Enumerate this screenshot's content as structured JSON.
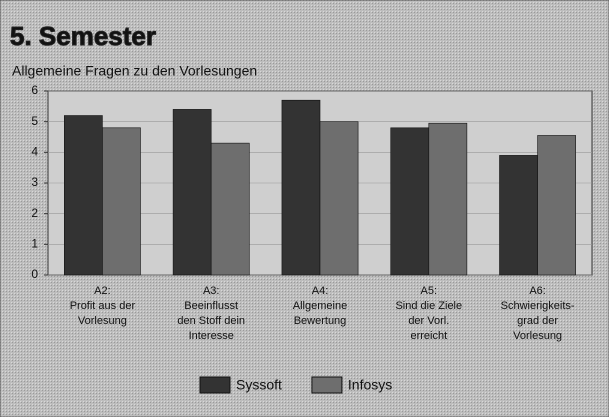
{
  "chart_data": {
    "type": "bar",
    "title": "5. Semester",
    "subtitle": "Allgemeine Fragen zu den Vorlesungen",
    "categories": [
      [
        "A2:",
        "Profit aus der",
        "Vorlesung"
      ],
      [
        "A3:",
        "Beeinflusst",
        "den Stoff dein",
        "Interesse"
      ],
      [
        "A4:",
        "Allgemeine",
        "Bewertung"
      ],
      [
        "A5:",
        "Sind die Ziele",
        "der Vorl.",
        "erreicht"
      ],
      [
        "A6:",
        "Schwierigkeits-",
        "grad der",
        "Vorlesung"
      ]
    ],
    "series": [
      {
        "name": "Syssoft",
        "color": "#333333",
        "values": [
          5.2,
          5.4,
          5.7,
          4.8,
          3.9
        ]
      },
      {
        "name": "Infosys",
        "color": "#6e6e6e",
        "values": [
          4.8,
          4.3,
          5.0,
          4.95,
          4.55
        ]
      }
    ],
    "ylim": [
      0,
      6
    ],
    "yticks": [
      0,
      1,
      2,
      3,
      4,
      5,
      6
    ],
    "grid": true,
    "legend": "bottom"
  }
}
